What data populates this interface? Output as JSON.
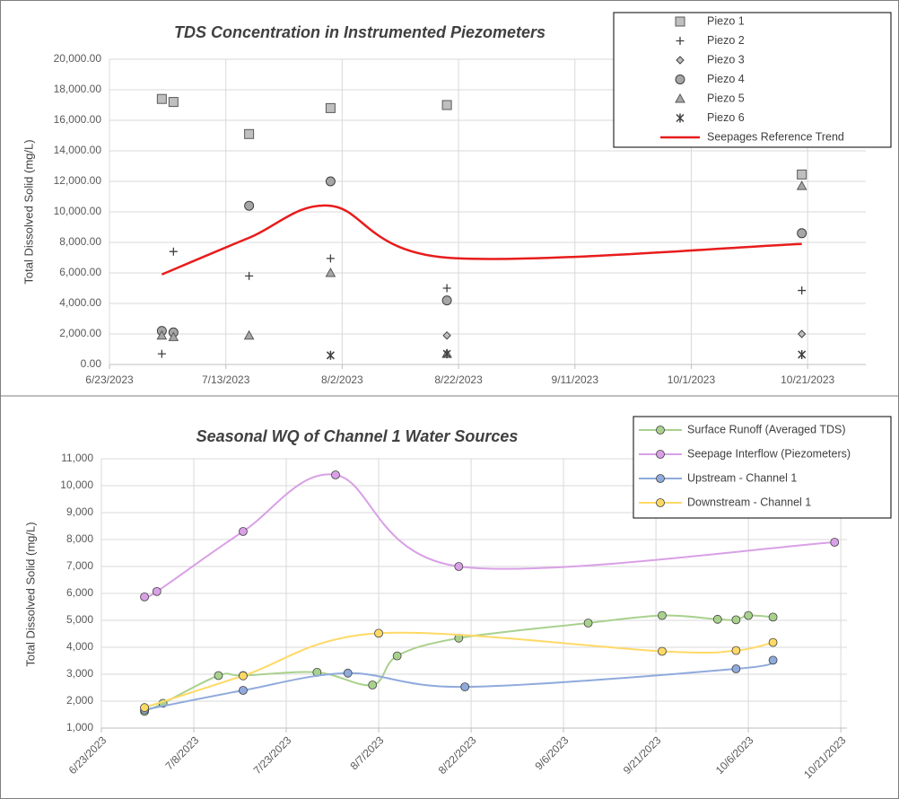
{
  "chart_data": [
    {
      "type": "scatter",
      "title": "TDS Concentration  in Instrumented Piezometers",
      "y_label": "Total Dissolved Solid (mg/L)",
      "xlim": [
        "6/23/2023",
        "10/31/2023"
      ],
      "xticks": [
        "6/23/2023",
        "7/13/2023",
        "8/2/2023",
        "8/22/2023",
        "9/11/2023",
        "10/1/2023",
        "10/21/2023"
      ],
      "ylim": [
        0,
        20000
      ],
      "yticks": [
        {
          "value": 0,
          "label": "0.00"
        },
        {
          "value": 2000,
          "label": "2,000.00"
        },
        {
          "value": 4000,
          "label": "4,000.00"
        },
        {
          "value": 6000,
          "label": "6,000.00"
        },
        {
          "value": 8000,
          "label": "8,000.00"
        },
        {
          "value": 10000,
          "label": "10,000.00"
        },
        {
          "value": 12000,
          "label": "12,000.00"
        },
        {
          "value": 14000,
          "label": "14,000.00"
        },
        {
          "value": 16000,
          "label": "16,000.00"
        },
        {
          "value": 18000,
          "label": "18,000.00"
        },
        {
          "value": 20000,
          "label": "20,000.00"
        }
      ],
      "grid": true,
      "legend": "top-right",
      "series": [
        {
          "name": "Piezo 1",
          "marker": "square",
          "color": "#bfbfbf",
          "x": [
            "7/2/2023",
            "7/4/2023",
            "7/17/2023",
            "7/31/2023",
            "8/20/2023",
            "10/20/2023"
          ],
          "values": [
            17400,
            17200,
            15100,
            16800,
            17000,
            12450
          ]
        },
        {
          "name": "Piezo 2",
          "marker": "plus",
          "color": "#404040",
          "x": [
            "7/2/2023",
            "7/4/2023",
            "7/17/2023",
            "7/31/2023",
            "8/20/2023",
            "10/20/2023"
          ],
          "values": [
            700,
            7400,
            5800,
            6950,
            5000,
            4850
          ]
        },
        {
          "name": "Piezo 3",
          "marker": "diamond",
          "color": "#bfbfbf",
          "x": [
            "8/20/2023",
            "10/20/2023"
          ],
          "values": [
            1900,
            2000
          ]
        },
        {
          "name": "Piezo 4",
          "marker": "circle",
          "color": "#a6a6a6",
          "x": [
            "7/2/2023",
            "7/4/2023",
            "7/17/2023",
            "7/31/2023",
            "8/20/2023",
            "10/20/2023"
          ],
          "values": [
            2200,
            2100,
            10400,
            12000,
            4200,
            8600
          ]
        },
        {
          "name": "Piezo 5",
          "marker": "triangle",
          "color": "#a6a6a6",
          "x": [
            "7/2/2023",
            "7/4/2023",
            "7/17/2023",
            "7/31/2023",
            "8/20/2023",
            "10/20/2023"
          ],
          "values": [
            1900,
            1800,
            1900,
            6000,
            700,
            11700
          ]
        },
        {
          "name": "Piezo 6",
          "marker": "star",
          "color": "#404040",
          "x": [
            "7/31/2023",
            "8/20/2023",
            "10/20/2023"
          ],
          "values": [
            600,
            700,
            650
          ]
        },
        {
          "name": "Seepages Reference Trend",
          "marker": "line",
          "color": "#e81c1c",
          "x": [
            "7/2/2023",
            "7/17/2023",
            "7/31/2023",
            "8/20/2023",
            "10/20/2023"
          ],
          "values": [
            5900,
            8300,
            10400,
            7000,
            7900
          ]
        }
      ]
    },
    {
      "type": "line",
      "title": "Seasonal WQ of Channel 1 Water Sources",
      "y_label": "Total Dissolved Solid (mg/L)",
      "smooth": true,
      "xlim": [
        "6/23/2023",
        "10/22/2023"
      ],
      "xticks": [
        "6/23/2023",
        "7/8/2023",
        "7/23/2023",
        "8/7/2023",
        "8/22/2023",
        "9/6/2023",
        "9/21/2023",
        "10/6/2023",
        "10/21/2023"
      ],
      "ylim": [
        1000,
        11000
      ],
      "yticks": [
        {
          "value": 1000,
          "label": "1,000"
        },
        {
          "value": 2000,
          "label": "2,000"
        },
        {
          "value": 3000,
          "label": "3,000"
        },
        {
          "value": 4000,
          "label": "4,000"
        },
        {
          "value": 5000,
          "label": "5,000"
        },
        {
          "value": 6000,
          "label": "6,000"
        },
        {
          "value": 7000,
          "label": "7,000"
        },
        {
          "value": 8000,
          "label": "8,000"
        },
        {
          "value": 9000,
          "label": "9,000"
        },
        {
          "value": 10000,
          "label": "10,000"
        },
        {
          "value": 11000,
          "label": "11,000"
        }
      ],
      "grid": true,
      "legend": "top-right",
      "series": [
        {
          "name": "Surface Runoff (Averaged TDS)",
          "color": "#a9d18e",
          "x": [
            "6/30/2023",
            "7/3/2023",
            "7/12/2023",
            "7/16/2023",
            "7/28/2023",
            "8/6/2023",
            "8/10/2023",
            "8/20/2023",
            "9/10/2023",
            "9/22/2023",
            "10/1/2023",
            "10/4/2023",
            "10/6/2023",
            "10/10/2023"
          ],
          "values": [
            1620,
            1920,
            2950,
            2950,
            3070,
            2600,
            3680,
            4340,
            4900,
            5180,
            5040,
            5020,
            5180,
            5120
          ]
        },
        {
          "name": "Seepage Interflow (Piezometers)",
          "color": "#d9a0e6",
          "x": [
            "6/30/2023",
            "7/2/2023",
            "7/16/2023",
            "7/31/2023",
            "8/20/2023",
            "10/20/2023"
          ],
          "values": [
            5870,
            6070,
            8300,
            10400,
            7000,
            7900
          ]
        },
        {
          "name": "Upstream - Channel 1",
          "color": "#8faadc",
          "x": [
            "6/30/2023",
            "7/16/2023",
            "8/2/2023",
            "8/21/2023",
            "10/4/2023",
            "10/10/2023"
          ],
          "values": [
            1680,
            2400,
            3040,
            2530,
            3200,
            3520
          ]
        },
        {
          "name": "Downstream - Channel 1",
          "color": "#ffd966",
          "x": [
            "6/30/2023",
            "7/16/2023",
            "8/7/2023",
            "9/22/2023",
            "10/4/2023",
            "10/10/2023"
          ],
          "values": [
            1760,
            2940,
            4520,
            3850,
            3880,
            4180
          ]
        }
      ]
    }
  ]
}
